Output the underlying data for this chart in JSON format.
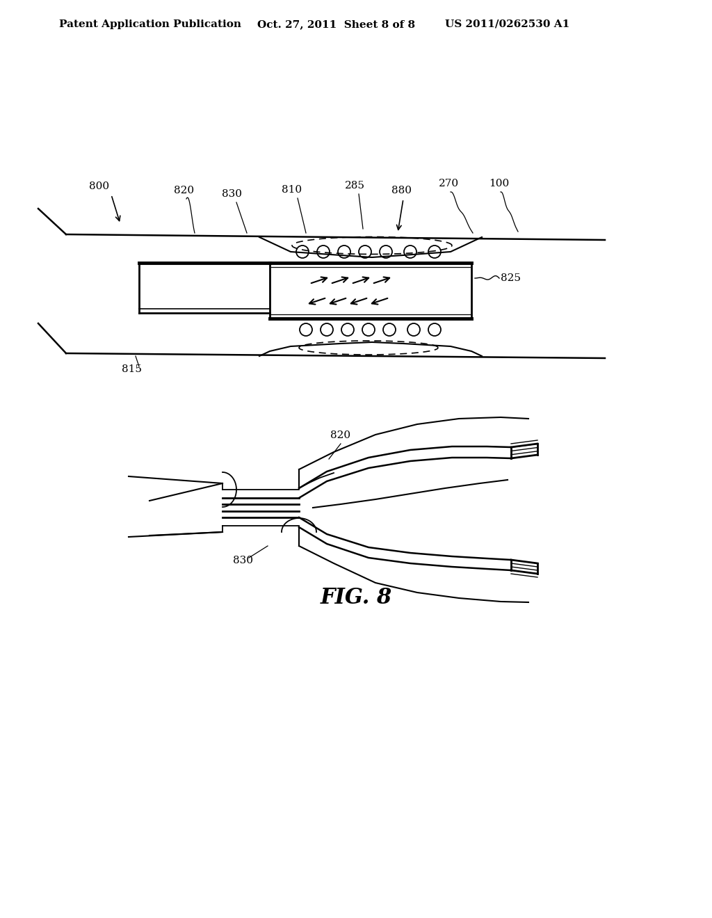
{
  "bg_color": "#ffffff",
  "header_left": "Patent Application Publication",
  "header_mid": "Oct. 27, 2011  Sheet 8 of 8",
  "header_right": "US 2011/0262530 A1",
  "fig_label": "FIG. 8",
  "header_fontsize": 10,
  "fig_label_fontsize": 22,
  "label_fontsize": 11
}
